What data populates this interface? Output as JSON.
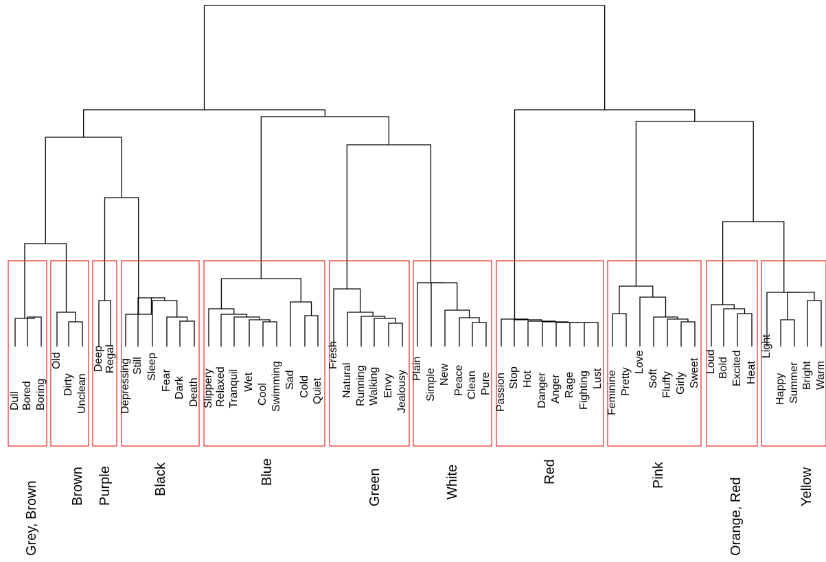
{
  "leaves": [
    "Dull",
    "Bored",
    "Boring",
    "Old",
    "Dirty",
    "Unclean",
    "Deep",
    "Regal",
    "Depressing",
    "Still",
    "Sleep",
    "Fear",
    "Dark",
    "Death",
    "Slippery",
    "Relaxed",
    "Tranquil",
    "Wet",
    "Cool",
    "Swimming",
    "Sad",
    "Cold",
    "Quiet",
    "Fresh",
    "Natural",
    "Running",
    "Walking",
    "Envy",
    "Jealousy",
    "Plain",
    "Simple",
    "New",
    "Peace",
    "Clean",
    "Pure",
    "Passion",
    "Stop",
    "Hot",
    "Danger",
    "Anger",
    "Rage",
    "Fighting",
    "Lust",
    "Feminine",
    "Pretty",
    "Love",
    "Soft",
    "Fluffy",
    "Girly",
    "Sweet",
    "Loud",
    "Bold",
    "Excited",
    "Heat",
    "Light",
    "Happy",
    "Summer",
    "Bright",
    "Warm"
  ],
  "groups": [
    "Grey, Brown",
    "Brown",
    "Purple",
    "Black",
    "Blue",
    "Green",
    "White",
    "Red",
    "Pink",
    "Orange, Red",
    "Yellow"
  ],
  "colors": {
    "tree": "#000000",
    "box": "#e8261e"
  }
}
